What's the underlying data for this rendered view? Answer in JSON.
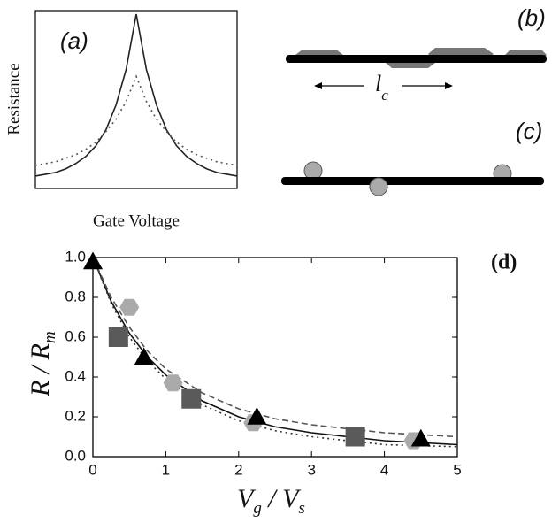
{
  "chart_data": [
    {
      "type": "scatter",
      "label": "(d)",
      "xlabel": [
        "V",
        "g",
        " / V",
        "s"
      ],
      "ylabel": [
        "R / R",
        "m"
      ],
      "xlim": [
        0,
        5
      ],
      "ylim": [
        0,
        1
      ],
      "xticks": [
        0,
        1,
        2,
        3,
        4,
        5
      ],
      "yticks": [
        {
          "value": 0,
          "label": "0.0"
        },
        0.2,
        0.4,
        0.6,
        0.8,
        {
          "value": 1,
          "label": "1.0"
        }
      ],
      "series": [
        {
          "kind": "line",
          "dash": "solid",
          "color": "#111111",
          "x": [
            0,
            0.25,
            0.5,
            0.75,
            1,
            1.5,
            2,
            2.5,
            3,
            3.5,
            4,
            4.5,
            5
          ],
          "values": [
            1,
            0.78,
            0.62,
            0.5,
            0.41,
            0.28,
            0.2,
            0.15,
            0.12,
            0.1,
            0.08,
            0.07,
            0.06
          ]
        },
        {
          "kind": "line",
          "dash": "dashed",
          "color": "#555555",
          "x": [
            0,
            0.25,
            0.5,
            0.75,
            1,
            1.5,
            2,
            2.5,
            3,
            3.5,
            4,
            4.5,
            5
          ],
          "values": [
            1,
            0.8,
            0.65,
            0.53,
            0.44,
            0.32,
            0.24,
            0.19,
            0.16,
            0.14,
            0.12,
            0.11,
            0.1
          ]
        },
        {
          "kind": "line",
          "dash": "dotted",
          "color": "#333333",
          "x": [
            0,
            0.25,
            0.5,
            0.75,
            1,
            1.5,
            2,
            2.5,
            3,
            3.5,
            4,
            4.5,
            5
          ],
          "values": [
            1,
            0.77,
            0.6,
            0.48,
            0.39,
            0.26,
            0.18,
            0.13,
            0.1,
            0.08,
            0.06,
            0.055,
            0.05
          ]
        },
        {
          "kind": "marker",
          "marker": "hexagon",
          "color": "#aaaaaa",
          "x": [
            0.5,
            1.1,
            2.2,
            4.4
          ],
          "values": [
            0.75,
            0.37,
            0.17,
            0.08
          ]
        },
        {
          "kind": "marker",
          "marker": "square",
          "color": "#5a5a5a",
          "x": [
            0.35,
            1.35,
            3.6
          ],
          "values": [
            0.6,
            0.29,
            0.1
          ]
        },
        {
          "kind": "marker",
          "marker": "triangle",
          "color": "#000000",
          "x": [
            0,
            0.7,
            2.25,
            4.5
          ],
          "values": [
            0.98,
            0.5,
            0.2,
            0.09
          ]
        }
      ]
    },
    {
      "type": "line",
      "label": "(a)",
      "xlabel": "Gate Voltage",
      "ylabel": "Resistance",
      "xlim": [
        -1,
        1
      ],
      "ylim": [
        0,
        1
      ],
      "series": [
        {
          "kind": "line",
          "dash": "solid",
          "color": "#222222",
          "x": [
            -1,
            -0.9,
            -0.8,
            -0.7,
            -0.6,
            -0.5,
            -0.4,
            -0.3,
            -0.2,
            -0.1,
            0,
            0.1,
            0.2,
            0.3,
            0.4,
            0.5,
            0.6,
            0.7,
            0.8,
            0.9,
            1
          ],
          "values": [
            0.07,
            0.08,
            0.09,
            0.11,
            0.14,
            0.18,
            0.24,
            0.33,
            0.47,
            0.67,
            0.98,
            0.67,
            0.47,
            0.33,
            0.24,
            0.18,
            0.14,
            0.11,
            0.09,
            0.08,
            0.07
          ]
        },
        {
          "kind": "line",
          "dash": "dotted",
          "color": "#555555",
          "x": [
            -1,
            -0.9,
            -0.8,
            -0.7,
            -0.6,
            -0.5,
            -0.4,
            -0.3,
            -0.2,
            -0.1,
            0,
            0.1,
            0.2,
            0.3,
            0.4,
            0.5,
            0.6,
            0.7,
            0.8,
            0.9,
            1
          ],
          "values": [
            0.13,
            0.14,
            0.15,
            0.17,
            0.19,
            0.22,
            0.26,
            0.32,
            0.39,
            0.49,
            0.63,
            0.49,
            0.39,
            0.32,
            0.26,
            0.22,
            0.19,
            0.17,
            0.15,
            0.14,
            0.13
          ]
        }
      ]
    }
  ],
  "diagrams": {
    "b_label": "(b)",
    "c_label": "(c)",
    "length": "l",
    "length_sub": "c"
  }
}
